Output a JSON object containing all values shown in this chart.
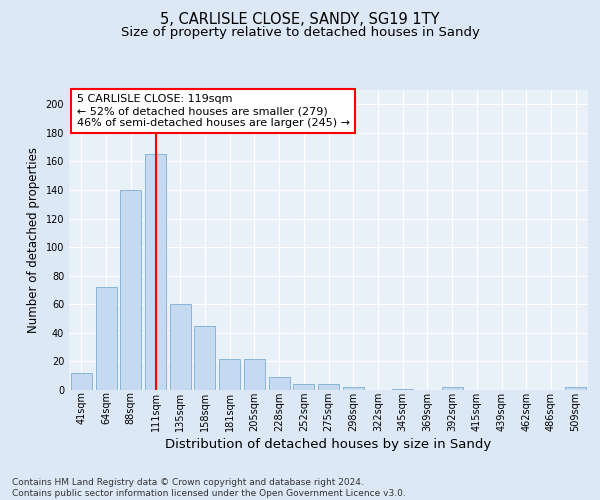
{
  "title_line1": "5, CARLISLE CLOSE, SANDY, SG19 1TY",
  "title_line2": "Size of property relative to detached houses in Sandy",
  "xlabel": "Distribution of detached houses by size in Sandy",
  "ylabel": "Number of detached properties",
  "bar_labels": [
    "41sqm",
    "64sqm",
    "88sqm",
    "111sqm",
    "135sqm",
    "158sqm",
    "181sqm",
    "205sqm",
    "228sqm",
    "252sqm",
    "275sqm",
    "298sqm",
    "322sqm",
    "345sqm",
    "369sqm",
    "392sqm",
    "415sqm",
    "439sqm",
    "462sqm",
    "486sqm",
    "509sqm"
  ],
  "bar_values": [
    12,
    72,
    140,
    165,
    60,
    45,
    22,
    22,
    9,
    4,
    4,
    2,
    0,
    1,
    0,
    2,
    0,
    0,
    0,
    0,
    2
  ],
  "bar_color": "#c5d9f0",
  "bar_edge_color": "#7bafd4",
  "marker_bar_index": 3,
  "annotation_line1": "5 CARLISLE CLOSE: 119sqm",
  "annotation_line2": "← 52% of detached houses are smaller (279)",
  "annotation_line3": "46% of semi-detached houses are larger (245) →",
  "annotation_box_color": "white",
  "annotation_box_edge_color": "red",
  "marker_line_color": "red",
  "ylim": [
    0,
    210
  ],
  "yticks": [
    0,
    20,
    40,
    60,
    80,
    100,
    120,
    140,
    160,
    180,
    200
  ],
  "footer_text": "Contains HM Land Registry data © Crown copyright and database right 2024.\nContains public sector information licensed under the Open Government Licence v3.0.",
  "bg_color": "#dce8f5",
  "plot_bg_color": "#e8f0f8",
  "grid_color": "#ffffff",
  "title_fontsize": 10.5,
  "subtitle_fontsize": 9.5,
  "ylabel_fontsize": 8.5,
  "xlabel_fontsize": 9.5,
  "tick_fontsize": 7,
  "annot_fontsize": 8,
  "footer_fontsize": 6.5
}
